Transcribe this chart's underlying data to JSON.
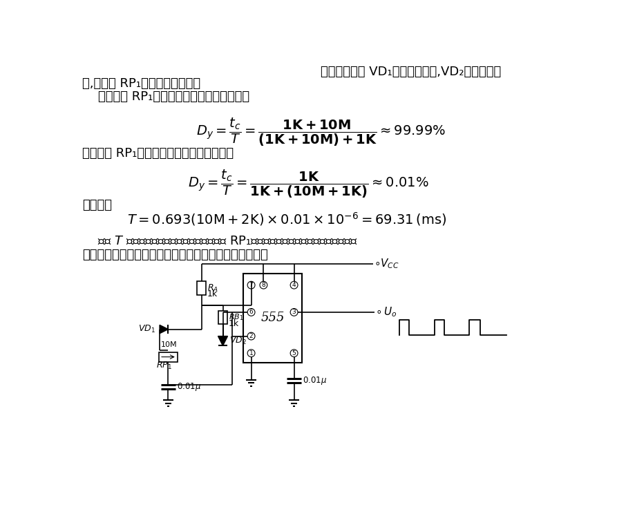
{
  "bg_color": "#ffffff",
  "text_color": "#000000",
  "figsize": [
    9.06,
    7.31
  ],
  "dpi": 100,
  "line1_right": "其中的二极管 VD₁为充电引导管,VD₂为放电引导",
  "line1_right_cont": "导",
  "line2": "管,电位器 RP₁用来调节占空比。",
  "line3": "    当电位器 RP₁中心端滑向右端时，占空比为",
  "formula1": "$D_y = \\dfrac{t_c}{T} = \\dfrac{\\mathbf{1K + 10M}}{\\mathbf{(1K + 10M) + 1K}} \\approx 99.99\\%$",
  "line4": "当电位器 RP₁中心端滑向左端时，占空比为",
  "formula2": "$D_y = \\dfrac{t_c}{T} = \\dfrac{\\mathbf{1K}}{\\mathbf{1K + (10M + 1K)}} \\approx 0.01\\%$",
  "line5": "振荡周期",
  "formula3": "$T = 0.693(10\\mathrm{M} + 2\\mathrm{K}) \\times 0.01 \\times 10^{-6} = 69.31\\,(\\mathrm{ms})$",
  "line6": "    显然 $T$ 是个常数，说明振荡频率不受电位器 RP₁中心端所在位置的影响。这个电路在要",
  "line7": "求占空比可调而频率不能发生变化的场合是非常适用的。"
}
